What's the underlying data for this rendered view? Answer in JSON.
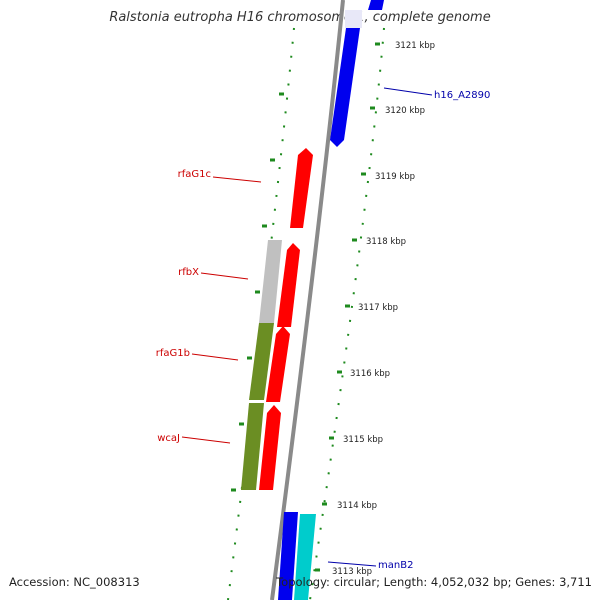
{
  "title": "Ralstonia eutropha H16 chromosome 1, complete genome",
  "footer": {
    "accession": "Accession: NC_008313",
    "topology": "Topology: circular; Length: 4,052,032 bp; Genes: 3,711"
  },
  "colors": {
    "backbone": "#8a8a8a",
    "ticks": "#1e8a1e",
    "forward_label": "#0000aa",
    "reverse_label": "#cc0000"
  },
  "ticks": [
    {
      "kbp": 3121,
      "label": "3121 kbp"
    },
    {
      "kbp": 3120,
      "label": "3120 kbp"
    },
    {
      "kbp": 3119,
      "label": "3119 kbp"
    },
    {
      "kbp": 3118,
      "label": "3118 kbp"
    },
    {
      "kbp": 3117,
      "label": "3117 kbp"
    },
    {
      "kbp": 3116,
      "label": "3116 kbp"
    },
    {
      "kbp": 3115,
      "label": "3115 kbp"
    },
    {
      "kbp": 3114,
      "label": "3114 kbp"
    },
    {
      "kbp": 3113,
      "label": "3113 kbp"
    }
  ],
  "genes": [
    {
      "name": "h16_A2890",
      "strand": "forward",
      "color": "#0000ee",
      "labelled": true
    },
    {
      "name": "rfaG1c",
      "strand": "reverse",
      "color": "#ff0000",
      "labelled": true
    },
    {
      "name": "rfbX",
      "strand": "reverse",
      "color": "#ff0000",
      "labelled": true
    },
    {
      "name": "rfaG1b",
      "strand": "reverse",
      "color": "#ff0000",
      "labelled": true
    },
    {
      "name": "wcaJ",
      "strand": "reverse",
      "color": "#ff0000",
      "labelled": true
    },
    {
      "name": "manB2",
      "strand": "forward",
      "color": "#00cccc",
      "labelled": true
    }
  ],
  "features": [
    {
      "type": "other",
      "color": "#c0c0c0"
    },
    {
      "type": "other",
      "color": "#6b8e23"
    }
  ]
}
